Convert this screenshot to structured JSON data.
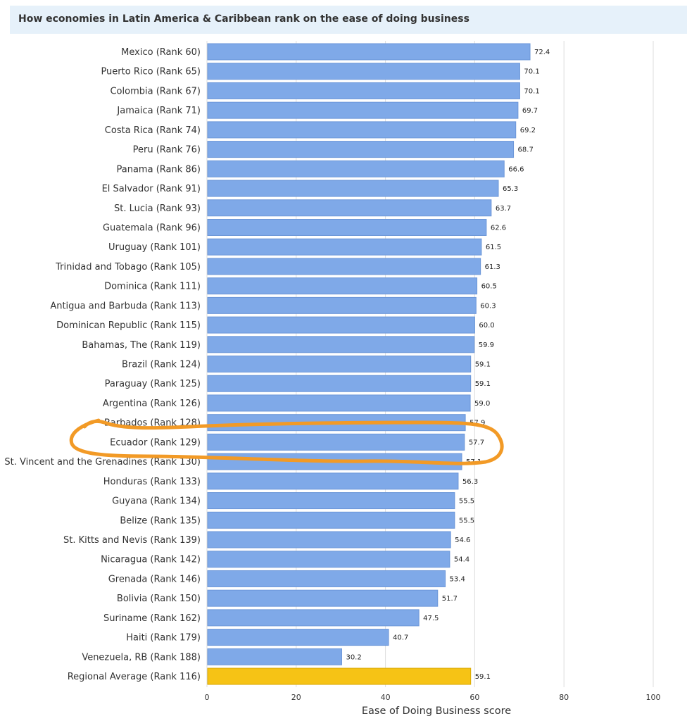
{
  "chart_data": {
    "type": "bar",
    "orientation": "horizontal",
    "title": "How economies in Latin America & Caribbean rank on the ease of doing business",
    "xlabel": "Ease of Doing Business score",
    "ylabel": "",
    "xlim": [
      0,
      100
    ],
    "xticks": [
      "0",
      "20",
      "40",
      "60",
      "80",
      "100"
    ],
    "grid": true,
    "highlighted_category": "Regional Average (Rank 116)",
    "annotation": "hand-drawn orange circle around Barbados, Ecuador and St. Vincent and the Grenadines rows",
    "categories": [
      "Mexico (Rank 60)",
      "Puerto Rico (Rank 65)",
      "Colombia (Rank 67)",
      "Jamaica (Rank 71)",
      "Costa Rica (Rank 74)",
      "Peru (Rank 76)",
      "Panama (Rank 86)",
      "El Salvador (Rank 91)",
      "St. Lucia (Rank 93)",
      "Guatemala (Rank 96)",
      "Uruguay (Rank 101)",
      "Trinidad and Tobago (Rank 105)",
      "Dominica (Rank 111)",
      "Antigua and Barbuda (Rank 113)",
      "Dominican Republic (Rank 115)",
      "Bahamas, The (Rank 119)",
      "Brazil (Rank 124)",
      "Paraguay (Rank 125)",
      "Argentina (Rank 126)",
      "Barbados (Rank 128)",
      "Ecuador (Rank 129)",
      "St. Vincent and the Grenadines (Rank 130)",
      "Honduras (Rank 133)",
      "Guyana (Rank 134)",
      "Belize (Rank 135)",
      "St. Kitts and Nevis (Rank 139)",
      "Nicaragua (Rank 142)",
      "Grenada (Rank 146)",
      "Bolivia (Rank 150)",
      "Suriname (Rank 162)",
      "Haiti (Rank 179)",
      "Venezuela, RB (Rank 188)",
      "Regional Average (Rank 116)"
    ],
    "values": [
      72.4,
      70.1,
      70.1,
      69.7,
      69.2,
      68.7,
      66.6,
      65.3,
      63.7,
      62.6,
      61.5,
      61.3,
      60.5,
      60.3,
      60.0,
      59.9,
      59.1,
      59.1,
      59.0,
      57.9,
      57.7,
      57.1,
      56.3,
      55.5,
      55.5,
      54.6,
      54.4,
      53.4,
      51.7,
      47.5,
      40.7,
      30.2,
      59.1
    ],
    "value_labels": [
      "72.4",
      "70.1",
      "70.1",
      "69.7",
      "69.2",
      "68.7",
      "66.6",
      "65.3",
      "63.7",
      "62.6",
      "61.5",
      "61.3",
      "60.5",
      "60.3",
      "60.0",
      "59.9",
      "59.1",
      "59.1",
      "59.0",
      "57.9",
      "57.7",
      "57.1",
      "56.3",
      "55.5",
      "55.5",
      "54.6",
      "54.4",
      "53.4",
      "51.7",
      "47.5",
      "40.7",
      "30.2",
      "59.1"
    ],
    "colors": {
      "bar": "#7fa9e8",
      "bar_stroke": "#6b96d8",
      "highlight": "#f6c315",
      "highlight_stroke": "#d9a900",
      "annotation": "#f29a26",
      "grid": "#dddddd",
      "title_bg": "#e6f1fa"
    }
  }
}
